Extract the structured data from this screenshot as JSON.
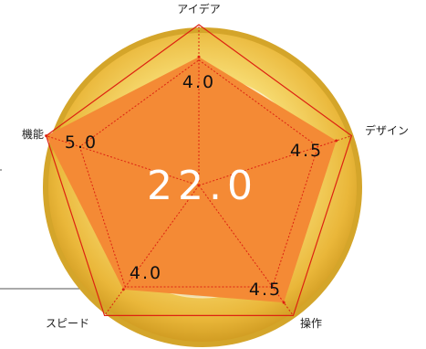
{
  "chart_data": {
    "type": "radar",
    "axes": [
      "アイデア",
      "デザイン",
      "操作",
      "スピード",
      "機能"
    ],
    "values": [
      4.0,
      4.5,
      4.5,
      4.0,
      5.0
    ],
    "value_labels": [
      "4.0",
      "4.5",
      "4.5",
      "4.0",
      "5.0"
    ],
    "max": 5,
    "total": "22.0",
    "grid": false,
    "legend": "none"
  },
  "colors": {
    "fill": "#f48a35",
    "outline": "#dd2211",
    "disc_outer": "#e2b12c",
    "disc_inner": "#fae38c",
    "total_text": "#ffffff",
    "connector": "#555555"
  }
}
